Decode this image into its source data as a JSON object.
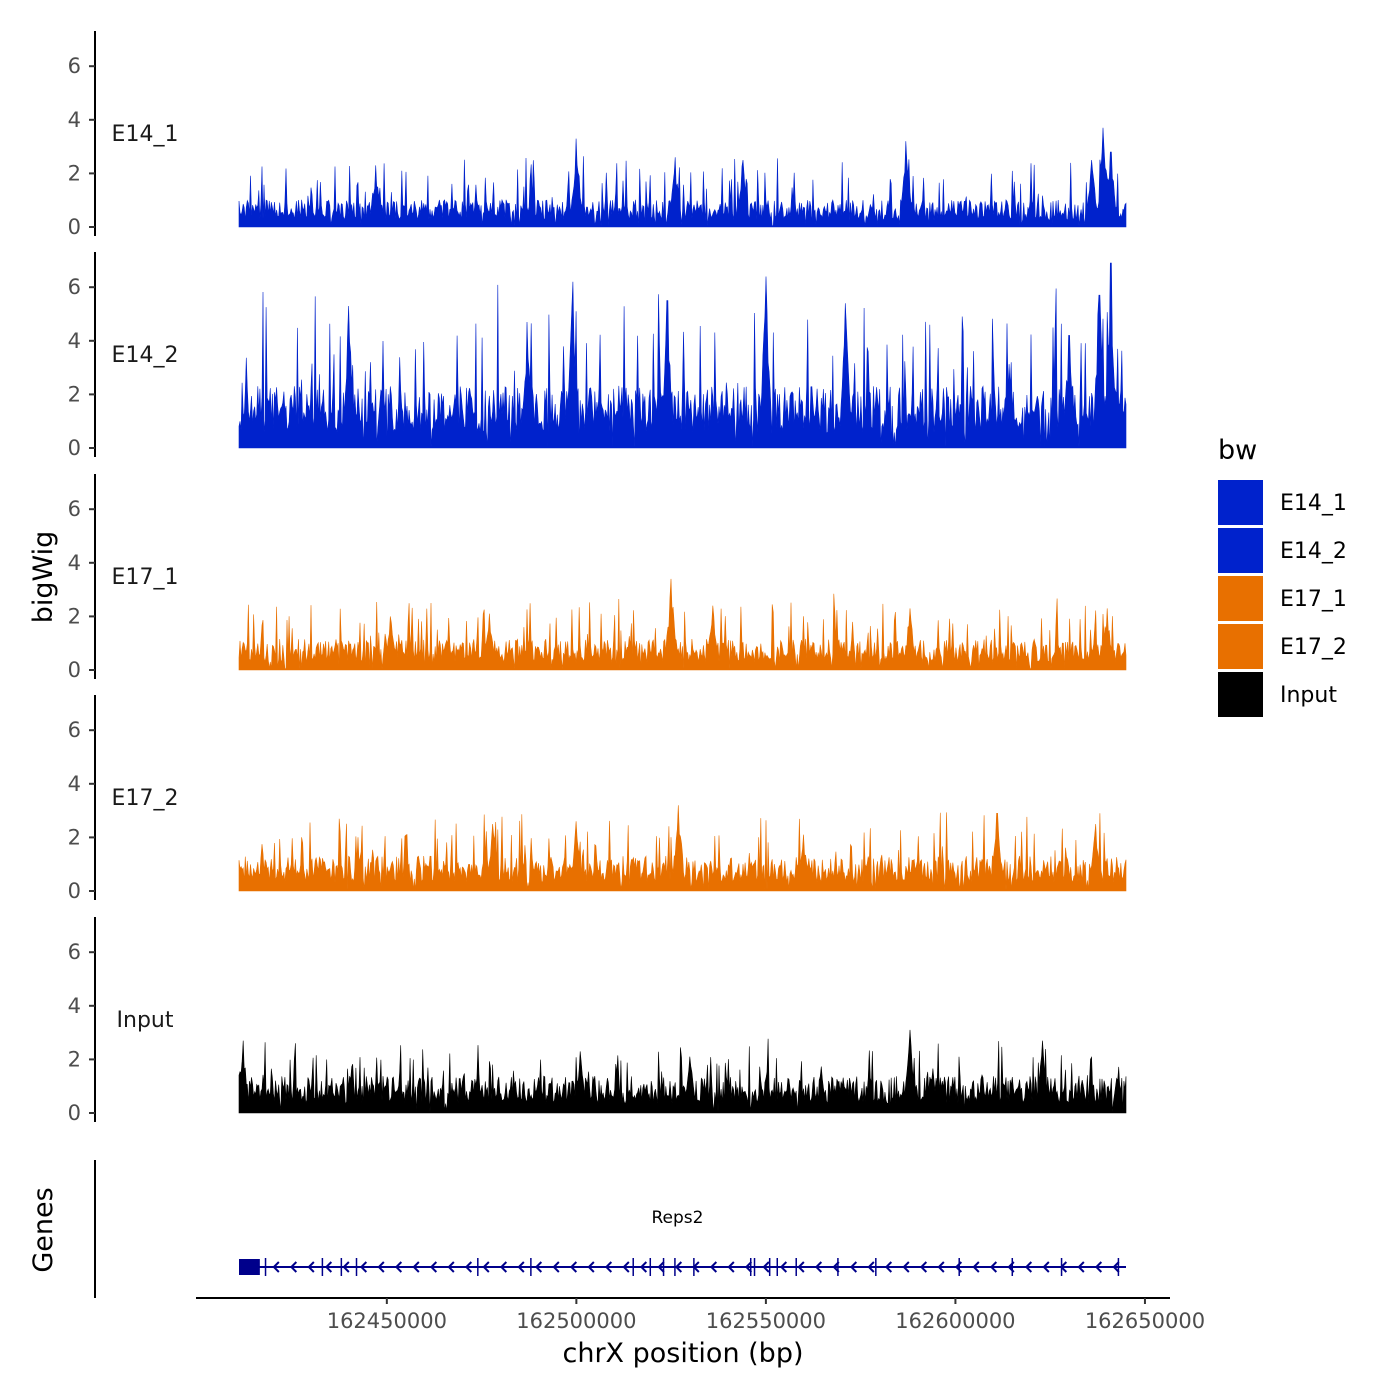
{
  "chart_data": {
    "type": "area",
    "title": "",
    "ylabel": "bigWig",
    "xlabel": "chrX position (bp)",
    "chromosome": "chrX",
    "xlim": [
      162400000,
      162660000
    ],
    "data_range": [
      162411000,
      162645000
    ],
    "x_ticks": [
      162450000,
      162500000,
      162550000,
      162600000,
      162650000
    ],
    "x_tick_labels": [
      "162450000",
      "162500000",
      "162550000",
      "162600000",
      "162650000"
    ],
    "ylim": [
      0,
      7.2
    ],
    "y_ticks": [
      0,
      2,
      4,
      6
    ],
    "y_tick_labels": [
      "0",
      "2",
      "4",
      "6"
    ],
    "legend": {
      "title": "bw",
      "position": "right",
      "entries": [
        {
          "name": "E14_1",
          "color": "#0022CC"
        },
        {
          "name": "E14_2",
          "color": "#0022CC"
        },
        {
          "name": "E17_1",
          "color": "#E87000"
        },
        {
          "name": "E17_2",
          "color": "#E87000"
        },
        {
          "name": "Input",
          "color": "#000000"
        }
      ]
    },
    "series": [
      {
        "name": "E14_1",
        "color": "#0022CC",
        "baseline": 0.7,
        "noise": 0.6,
        "max_clip": 3.7,
        "peaks": [
          [
            162447000,
            2.3
          ],
          [
            162500000,
            3.3
          ],
          [
            162526000,
            2.6
          ],
          [
            162544000,
            2.5
          ],
          [
            162587000,
            3.2
          ],
          [
            162636000,
            2.5
          ],
          [
            162639000,
            3.7
          ],
          [
            162641000,
            2.8
          ]
        ]
      },
      {
        "name": "E14_2",
        "color": "#0022CC",
        "baseline": 1.6,
        "noise": 1.3,
        "max_clip": 6.9,
        "peaks": [
          [
            162440000,
            5.3
          ],
          [
            162487000,
            4.7
          ],
          [
            162499000,
            6.2
          ],
          [
            162524000,
            5.5
          ],
          [
            162550000,
            6.4
          ],
          [
            162571000,
            5.4
          ],
          [
            162630000,
            4.2
          ],
          [
            162638000,
            5.7
          ],
          [
            162641000,
            6.9
          ]
        ]
      },
      {
        "name": "E17_1",
        "color": "#E87000",
        "baseline": 0.8,
        "noise": 0.6,
        "max_clip": 3.4,
        "peaks": [
          [
            162451000,
            2.0
          ],
          [
            162477000,
            2.1
          ],
          [
            162525000,
            3.4
          ],
          [
            162536000,
            2.4
          ],
          [
            162588000,
            2.3
          ],
          [
            162640000,
            2.3
          ]
        ]
      },
      {
        "name": "E17_2",
        "color": "#E87000",
        "baseline": 0.9,
        "noise": 0.6,
        "max_clip": 3.2,
        "peaks": [
          [
            162478000,
            2.5
          ],
          [
            162500000,
            2.6
          ],
          [
            162527000,
            3.2
          ],
          [
            162560000,
            2.1
          ],
          [
            162611000,
            2.9
          ],
          [
            162637000,
            2.5
          ]
        ]
      },
      {
        "name": "Input",
        "color": "#000000",
        "baseline": 0.95,
        "noise": 0.5,
        "max_clip": 3.1,
        "peaks": [
          [
            162412000,
            2.7
          ],
          [
            162501000,
            2.3
          ],
          [
            162530000,
            2.1
          ],
          [
            162588000,
            3.1
          ],
          [
            162623000,
            2.7
          ]
        ]
      }
    ],
    "genes": {
      "track_label": "Genes",
      "items": [
        {
          "name": "Reps2",
          "strand": "-",
          "start": 162411000,
          "end": 162645000,
          "color": "#00008B",
          "utr_block": [
            162411000,
            162416500
          ],
          "exons": [
            162418000,
            162433000,
            162438000,
            162442000,
            162474000,
            162488000,
            162515000,
            162519500,
            162523000,
            162526000,
            162531000,
            162546000,
            162547000,
            162551000,
            162553000,
            162558000,
            162569000,
            162579000,
            162601000,
            162615000,
            162628000,
            162643000
          ]
        }
      ]
    }
  }
}
